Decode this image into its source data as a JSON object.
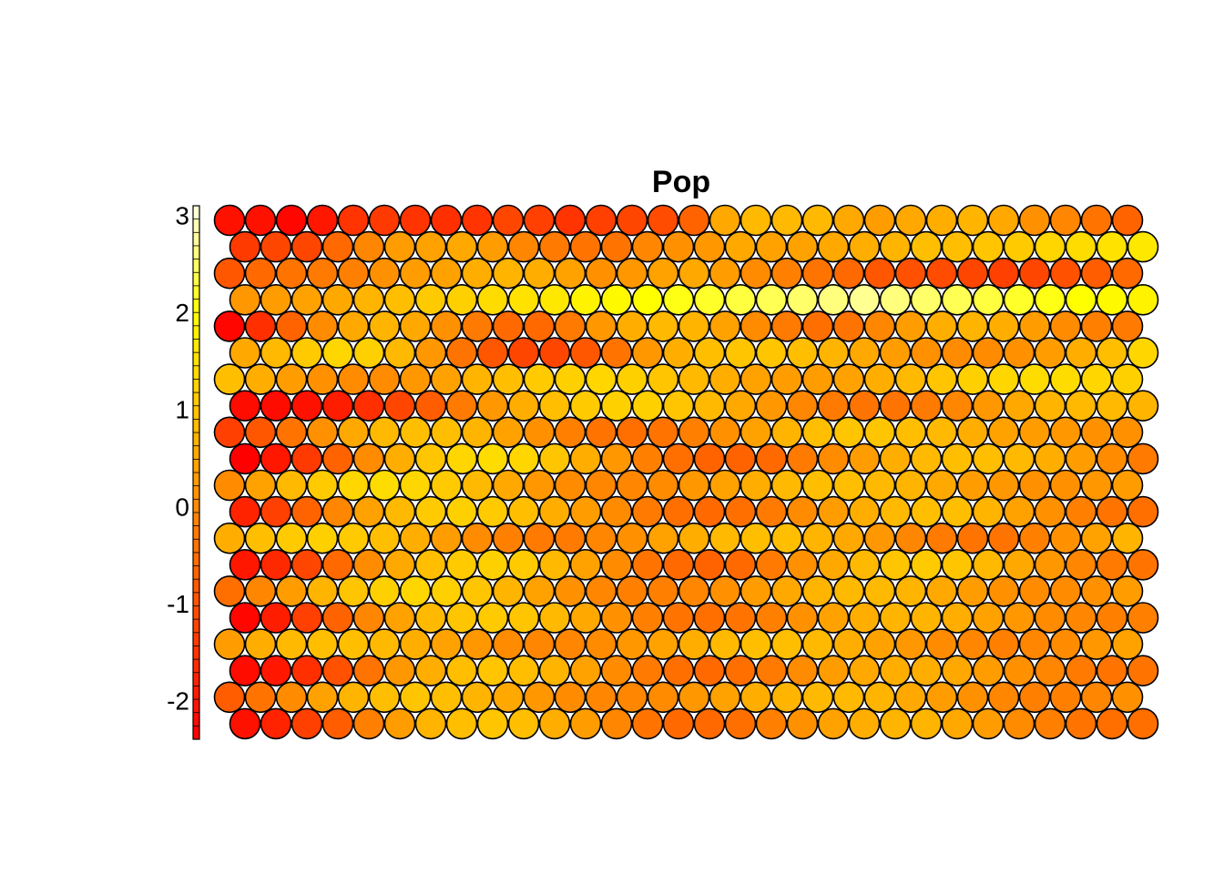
{
  "chart_data": {
    "type": "heatmap",
    "variant": "som-hexagonal",
    "title": "Pop",
    "grid": {
      "cols": 30,
      "rows": 20
    },
    "color_scale": {
      "min": -2.4,
      "max": 3.1,
      "ticks": [
        -2,
        -1,
        0,
        1,
        2,
        3
      ],
      "tick_labels": [
        "-2",
        "-1",
        "0",
        "1",
        "2",
        "3"
      ],
      "palette": "heat",
      "stops": [
        "#ff0000",
        "#ff4000",
        "#ff8000",
        "#ffbf00",
        "#ffff00",
        "#ffffe6"
      ],
      "legend_position": "left"
    },
    "outline_color": "#000000",
    "values": [
      [
        -2.1,
        -2.1,
        -2.3,
        -2.0,
        -1.5,
        -1.4,
        -1.5,
        -1.6,
        -1.5,
        -1.2,
        -1.3,
        -1.5,
        -1.3,
        -1.2,
        -1.1,
        -0.7,
        0.5,
        0.8,
        0.8,
        0.8,
        0.5,
        0.3,
        0.5,
        0.6,
        0.7,
        0.5,
        0.1,
        -0.1,
        -0.4,
        -0.7
      ],
      [
        -1.4,
        -1.2,
        -1.2,
        -0.6,
        -0.1,
        0.3,
        0.4,
        0.5,
        0.3,
        -0.1,
        -0.3,
        -0.4,
        -0.4,
        -0.1,
        0.1,
        0.2,
        0.5,
        0.4,
        0.4,
        0.5,
        0.6,
        0.7,
        0.9,
        0.9,
        1.0,
        1.1,
        1.3,
        1.4,
        1.5,
        1.6
      ],
      [
        -0.9,
        -0.6,
        -0.4,
        -0.3,
        -0.2,
        0.1,
        0.3,
        0.4,
        0.6,
        0.7,
        0.6,
        0.4,
        0.1,
        0.2,
        0.4,
        0.5,
        0.3,
        0.0,
        -0.2,
        -0.4,
        -0.6,
        -0.9,
        -1.0,
        -1.1,
        -1.2,
        -1.3,
        -1.2,
        -1.0,
        -0.8,
        -0.6
      ],
      [
        0.2,
        0.3,
        0.4,
        0.5,
        0.7,
        0.9,
        1.1,
        1.2,
        1.4,
        1.5,
        1.6,
        1.8,
        1.9,
        2.0,
        2.1,
        2.2,
        2.3,
        2.4,
        2.5,
        2.6,
        2.7,
        2.6,
        2.5,
        2.4,
        2.3,
        2.2,
        2.1,
        2.0,
        1.9,
        1.8
      ],
      [
        -2.3,
        -1.6,
        -0.7,
        0.0,
        0.5,
        0.7,
        0.5,
        0.1,
        -0.3,
        -0.6,
        -0.6,
        -0.3,
        0.2,
        0.6,
        0.8,
        0.7,
        0.4,
        0.0,
        -0.3,
        -0.5,
        -0.4,
        -0.1,
        0.3,
        0.6,
        0.7,
        0.6,
        0.3,
        0.0,
        -0.2,
        -0.3
      ],
      [
        0.5,
        0.8,
        1.1,
        1.3,
        1.2,
        0.8,
        0.2,
        -0.4,
        -0.9,
        -1.2,
        -1.2,
        -0.9,
        -0.4,
        0.2,
        0.6,
        0.9,
        1.0,
        1.0,
        0.9,
        0.7,
        0.5,
        0.3,
        0.1,
        0.0,
        0.0,
        0.1,
        0.3,
        0.6,
        0.9,
        1.3
      ],
      [
        0.9,
        0.6,
        0.3,
        0.1,
        0.0,
        0.0,
        0.2,
        0.4,
        0.7,
        0.9,
        1.1,
        1.2,
        1.3,
        1.2,
        1.0,
        0.8,
        0.6,
        0.4,
        0.3,
        0.3,
        0.4,
        0.6,
        0.8,
        1.0,
        1.2,
        1.3,
        1.4,
        1.4,
        1.3,
        1.2
      ],
      [
        -2.2,
        -2.2,
        -2.1,
        -1.9,
        -1.6,
        -1.2,
        -0.8,
        -0.3,
        0.2,
        0.6,
        0.9,
        1.1,
        1.2,
        1.2,
        1.0,
        0.8,
        0.5,
        0.2,
        -0.1,
        -0.3,
        -0.4,
        -0.4,
        -0.3,
        -0.1,
        0.2,
        0.5,
        0.7,
        0.8,
        0.8,
        0.7
      ],
      [
        -1.3,
        -0.9,
        -0.4,
        0.1,
        0.5,
        0.8,
        0.9,
        0.9,
        0.7,
        0.4,
        0.1,
        -0.2,
        -0.4,
        -0.5,
        -0.4,
        -0.2,
        0.1,
        0.4,
        0.7,
        0.9,
        1.0,
        1.0,
        0.9,
        0.8,
        0.6,
        0.4,
        0.3,
        0.2,
        0.1,
        0.1
      ],
      [
        -2.4,
        -2.0,
        -1.4,
        -0.7,
        0.0,
        0.6,
        1.0,
        1.3,
        1.4,
        1.3,
        1.0,
        0.6,
        0.2,
        -0.2,
        -0.5,
        -0.7,
        -0.7,
        -0.6,
        -0.3,
        0.0,
        0.3,
        0.6,
        0.8,
        0.9,
        0.9,
        0.8,
        0.6,
        0.3,
        0.0,
        -0.3
      ],
      [
        0.0,
        0.4,
        0.8,
        1.1,
        1.3,
        1.4,
        1.3,
        1.1,
        0.8,
        0.5,
        0.2,
        0.0,
        -0.1,
        -0.1,
        0.0,
        0.2,
        0.4,
        0.6,
        0.8,
        0.9,
        0.9,
        0.8,
        0.7,
        0.5,
        0.3,
        0.2,
        0.1,
        0.1,
        0.2,
        0.3
      ],
      [
        -1.8,
        -1.3,
        -0.7,
        -0.1,
        0.4,
        0.8,
        1.1,
        1.2,
        1.1,
        0.9,
        0.6,
        0.3,
        0.0,
        -0.3,
        -0.5,
        -0.6,
        -0.5,
        -0.3,
        0.0,
        0.3,
        0.6,
        0.8,
        0.9,
        0.9,
        0.7,
        0.4,
        0.1,
        -0.2,
        -0.4,
        -0.5
      ],
      [
        0.6,
        0.9,
        1.1,
        1.2,
        1.1,
        0.9,
        0.6,
        0.3,
        0.0,
        -0.2,
        -0.3,
        -0.3,
        -0.1,
        0.1,
        0.4,
        0.6,
        0.8,
        0.9,
        0.9,
        0.7,
        0.5,
        0.2,
        -0.1,
        -0.3,
        -0.4,
        -0.4,
        -0.2,
        0.1,
        0.4,
        0.7
      ],
      [
        -2.0,
        -1.7,
        -1.2,
        -0.6,
        0.0,
        0.5,
        0.9,
        1.1,
        1.2,
        1.1,
        0.8,
        0.4,
        0.0,
        -0.4,
        -0.6,
        -0.7,
        -0.6,
        -0.3,
        0.1,
        0.5,
        0.8,
        1.0,
        1.1,
        1.0,
        0.8,
        0.5,
        0.2,
        -0.1,
        -0.3,
        -0.4
      ],
      [
        -0.5,
        -0.1,
        0.3,
        0.7,
        1.0,
        1.2,
        1.3,
        1.2,
        1.0,
        0.7,
        0.4,
        0.1,
        -0.1,
        -0.2,
        -0.2,
        -0.1,
        0.1,
        0.3,
        0.5,
        0.7,
        0.8,
        0.8,
        0.7,
        0.5,
        0.3,
        0.1,
        0.0,
        0.0,
        0.1,
        0.3
      ],
      [
        -2.3,
        -1.9,
        -1.3,
        -0.7,
        -0.1,
        0.4,
        0.8,
        1.0,
        1.1,
        1.0,
        0.8,
        0.5,
        0.1,
        -0.2,
        -0.4,
        -0.5,
        -0.4,
        -0.2,
        0.1,
        0.4,
        0.6,
        0.7,
        0.7,
        0.6,
        0.4,
        0.2,
        0.0,
        -0.1,
        -0.2,
        -0.2
      ],
      [
        0.3,
        0.6,
        0.8,
        0.9,
        0.9,
        0.8,
        0.6,
        0.4,
        0.2,
        0.0,
        -0.1,
        -0.1,
        0.0,
        0.2,
        0.4,
        0.6,
        0.8,
        0.9,
        0.9,
        0.8,
        0.6,
        0.4,
        0.2,
        0.0,
        -0.1,
        -0.2,
        -0.1,
        0.0,
        0.2,
        0.4
      ],
      [
        -2.2,
        -2.0,
        -1.6,
        -1.0,
        -0.4,
        0.2,
        0.6,
        0.9,
        1.0,
        0.9,
        0.7,
        0.4,
        0.0,
        -0.3,
        -0.5,
        -0.6,
        -0.5,
        -0.3,
        0.0,
        0.3,
        0.5,
        0.6,
        0.6,
        0.5,
        0.3,
        0.1,
        -0.1,
        -0.3,
        -0.4,
        -0.4
      ],
      [
        -0.8,
        -0.4,
        0.0,
        0.4,
        0.7,
        0.9,
        1.0,
        0.9,
        0.7,
        0.5,
        0.2,
        0.0,
        -0.1,
        -0.1,
        0.0,
        0.2,
        0.4,
        0.6,
        0.7,
        0.8,
        0.8,
        0.7,
        0.5,
        0.3,
        0.1,
        -0.1,
        -0.2,
        -0.2,
        -0.1,
        0.1
      ],
      [
        -2.1,
        -1.8,
        -1.3,
        -0.8,
        -0.2,
        0.3,
        0.7,
        0.9,
        1.0,
        0.9,
        0.6,
        0.3,
        -0.1,
        -0.4,
        -0.6,
        -0.6,
        -0.5,
        -0.2,
        0.1,
        0.4,
        0.6,
        0.7,
        0.7,
        0.5,
        0.3,
        0.0,
        -0.2,
        -0.4,
        -0.5,
        -0.5
      ]
    ]
  }
}
